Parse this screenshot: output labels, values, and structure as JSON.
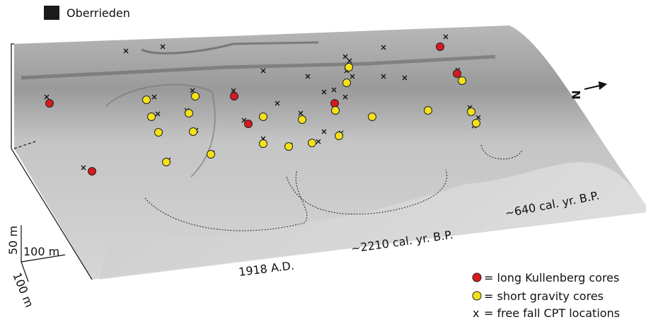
{
  "title": "Oberrieden",
  "ages": {
    "a1918": "1918 A.D.",
    "a2210": "~2210 cal. yr. B.P.",
    "a640": "~640 cal. yr. B.P."
  },
  "scale": {
    "vertical": "50 m",
    "horizontal": "100 m",
    "depth": "100 m"
  },
  "north": "N",
  "legend": [
    {
      "label": "= long Kullenberg cores"
    },
    {
      "label": "= short gravity cores"
    },
    {
      "symbol": "x",
      "label": "= free fall CPT locations"
    }
  ]
}
